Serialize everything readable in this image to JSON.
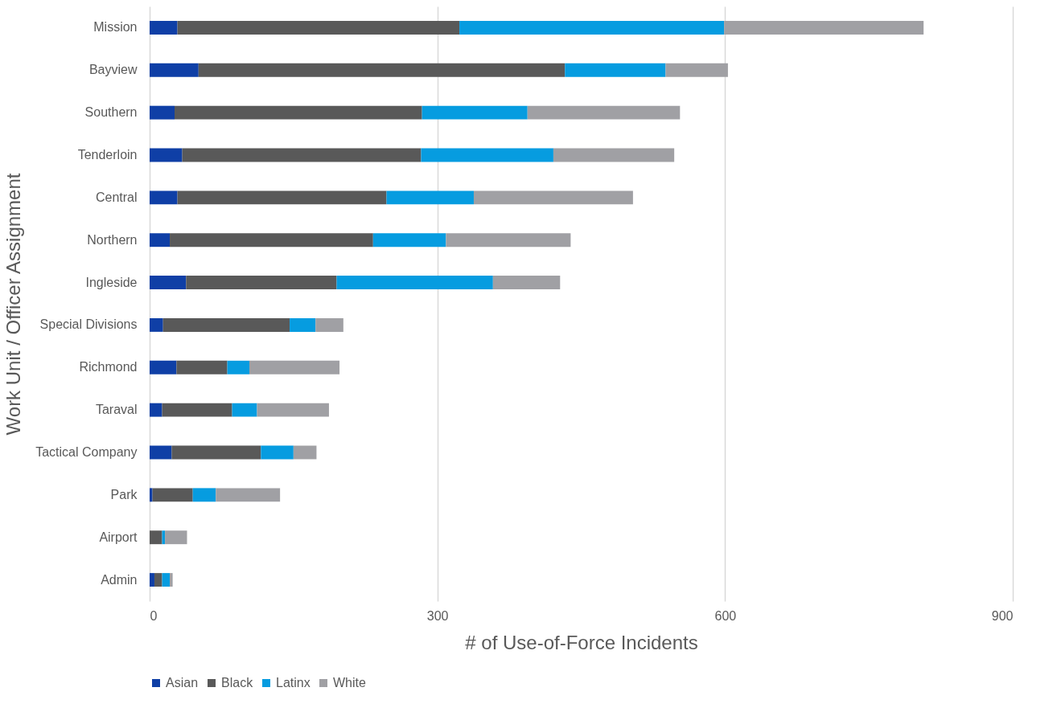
{
  "chart_data": {
    "type": "bar",
    "orientation": "horizontal",
    "stacked": true,
    "xlabel": "# of Use-of-Force Incidents",
    "ylabel": "Work Unit / Officer Assignment",
    "categories": [
      "Mission",
      "Bayview",
      "Southern",
      "Tenderloin",
      "Central",
      "Northern",
      "Ingleside",
      "Special Divisions",
      "Richmond",
      "Taraval",
      "Tactical Company",
      "Park",
      "Airport",
      "Admin"
    ],
    "series": [
      {
        "name": "Asian",
        "color": "#0f3fa6",
        "values": [
          29,
          51,
          26,
          34,
          29,
          21,
          38,
          14,
          28,
          13,
          23,
          3,
          0,
          5
        ]
      },
      {
        "name": "Black",
        "color": "#595959",
        "values": [
          294,
          382,
          258,
          249,
          218,
          212,
          157,
          132,
          53,
          73,
          93,
          42,
          13,
          8
        ]
      },
      {
        "name": "Latinx",
        "color": "#069ce0",
        "values": [
          276,
          105,
          110,
          138,
          91,
          76,
          163,
          27,
          23,
          26,
          34,
          24,
          3,
          8
        ]
      },
      {
        "name": "White",
        "color": "#a0a0a4",
        "values": [
          208,
          65,
          159,
          126,
          166,
          130,
          70,
          29,
          94,
          75,
          24,
          67,
          23,
          3
        ]
      }
    ],
    "xlim": [
      0,
      900
    ],
    "xticks": [
      0,
      300,
      600,
      900
    ],
    "grid": "x",
    "legend": "bottom"
  }
}
